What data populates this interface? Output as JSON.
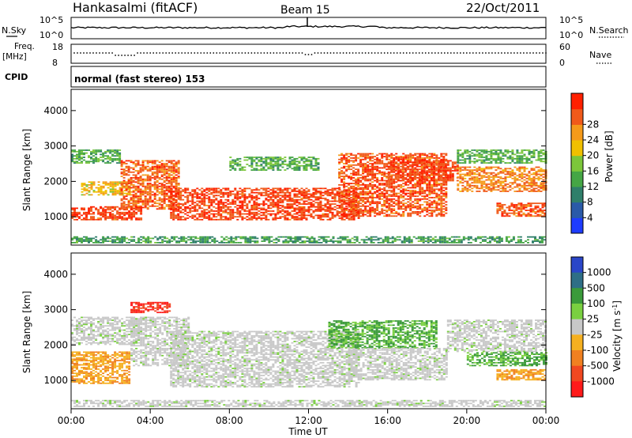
{
  "header": {
    "station": "Hankasalmi (fitACF)",
    "beam": "Beam 15",
    "date": "22/Oct/2011"
  },
  "strip_nsky": {
    "left_label": "N.Sky",
    "right_label": "N.Search",
    "tick_top": "10^5",
    "tick_bottom": "10^0"
  },
  "strip_freq": {
    "left_label_1": "Freq.",
    "left_label_2": "[MHz]",
    "right_label": "Nave",
    "left_ticks": [
      "18",
      "8"
    ],
    "right_ticks": [
      "60",
      "0"
    ]
  },
  "cpid": {
    "label": "CPID",
    "text": "normal (fast stereo) 153"
  },
  "x_axis": {
    "label": "Time UT",
    "ticks": [
      "00:00",
      "04:00",
      "08:00",
      "12:00",
      "16:00",
      "20:00",
      "00:00"
    ]
  },
  "chart_data": [
    {
      "type": "heatmap",
      "title": "",
      "xlabel": "Time UT",
      "ylabel": "Slant Range [km]",
      "y_ticks": [
        "1000",
        "2000",
        "3000",
        "4000"
      ],
      "ylim": [
        200,
        4600
      ],
      "xlim": [
        "00:00",
        "24:00"
      ],
      "colorbar": {
        "label": "Power [dB]",
        "ticks": [
          "4",
          "8",
          "12",
          "16",
          "20",
          "24",
          "28"
        ],
        "range": [
          0,
          30
        ],
        "colors": [
          "#1e3cff",
          "#2a5aa8",
          "#2f7f6a",
          "#45a645",
          "#7cc63a",
          "#f0c000",
          "#f59a1a",
          "#f05a1a",
          "#ff2000"
        ]
      },
      "bands": [
        {
          "t_start": 0.0,
          "t_end": 3.5,
          "r_low": 900,
          "r_high": 1300,
          "level": 28
        },
        {
          "t_start": 0.5,
          "t_end": 3.0,
          "r_low": 1600,
          "r_high": 2000,
          "level": 20
        },
        {
          "t_start": 0.0,
          "t_end": 2.5,
          "r_low": 2500,
          "r_high": 2900,
          "level": 12
        },
        {
          "t_start": 2.5,
          "t_end": 5.5,
          "r_low": 1200,
          "r_high": 2600,
          "level": 26
        },
        {
          "t_start": 5.0,
          "t_end": 14.5,
          "r_low": 900,
          "r_high": 1800,
          "level": 28
        },
        {
          "t_start": 8.0,
          "t_end": 12.5,
          "r_low": 2300,
          "r_high": 2700,
          "level": 12
        },
        {
          "t_start": 13.5,
          "t_end": 19.0,
          "r_low": 1000,
          "r_high": 2800,
          "level": 27
        },
        {
          "t_start": 16.0,
          "t_end": 19.5,
          "r_low": 2000,
          "r_high": 2600,
          "level": 28
        },
        {
          "t_start": 19.5,
          "t_end": 24.0,
          "r_low": 1700,
          "r_high": 2400,
          "level": 24
        },
        {
          "t_start": 19.5,
          "t_end": 24.0,
          "r_low": 2500,
          "r_high": 2900,
          "level": 12
        },
        {
          "t_start": 21.5,
          "t_end": 24.0,
          "r_low": 1000,
          "r_high": 1400,
          "level": 27
        },
        {
          "t_start": 0.0,
          "t_end": 24.0,
          "r_low": 250,
          "r_high": 450,
          "level": 10
        }
      ]
    },
    {
      "type": "heatmap",
      "title": "",
      "xlabel": "Time UT",
      "ylabel": "Slant Range [km]",
      "y_ticks": [
        "1000",
        "2000",
        "3000",
        "4000"
      ],
      "ylim": [
        200,
        4600
      ],
      "xlim": [
        "00:00",
        "24:00"
      ],
      "colorbar": {
        "label": "Velocity [m s^-1]",
        "ticks": [
          "1000",
          "500",
          "100",
          "25",
          "-25",
          "-100",
          "-500",
          "-1000"
        ],
        "colors": [
          "#2a46c8",
          "#2e6e86",
          "#3a9a3a",
          "#7ad040",
          "#c8c8c8",
          "#f5b020",
          "#f08020",
          "#f04820",
          "#ff1a1a"
        ]
      },
      "bands": [
        {
          "t_start": 0.0,
          "t_end": 3.0,
          "r_low": 900,
          "r_high": 1800,
          "level": -100
        },
        {
          "t_start": 0.0,
          "t_end": 3.5,
          "r_low": 2000,
          "r_high": 2800,
          "level": 0
        },
        {
          "t_start": 3.0,
          "t_end": 6.0,
          "r_low": 1400,
          "r_high": 2800,
          "level": 0
        },
        {
          "t_start": 5.0,
          "t_end": 14.5,
          "r_low": 800,
          "r_high": 2400,
          "level": 0
        },
        {
          "t_start": 13.0,
          "t_end": 18.5,
          "r_low": 1900,
          "r_high": 2700,
          "level": 100
        },
        {
          "t_start": 14.0,
          "t_end": 19.0,
          "r_low": 1000,
          "r_high": 1900,
          "level": 0
        },
        {
          "t_start": 19.0,
          "t_end": 24.0,
          "r_low": 1800,
          "r_high": 2700,
          "level": 0
        },
        {
          "t_start": 20.0,
          "t_end": 24.0,
          "r_low": 1400,
          "r_high": 1800,
          "level": 100
        },
        {
          "t_start": 21.5,
          "t_end": 24.0,
          "r_low": 1000,
          "r_high": 1300,
          "level": -100
        },
        {
          "t_start": 3.0,
          "t_end": 5.0,
          "r_low": 2900,
          "r_high": 3200,
          "level": -500
        },
        {
          "t_start": 0.0,
          "t_end": 24.0,
          "r_low": 250,
          "r_high": 450,
          "level": 0
        }
      ]
    }
  ]
}
